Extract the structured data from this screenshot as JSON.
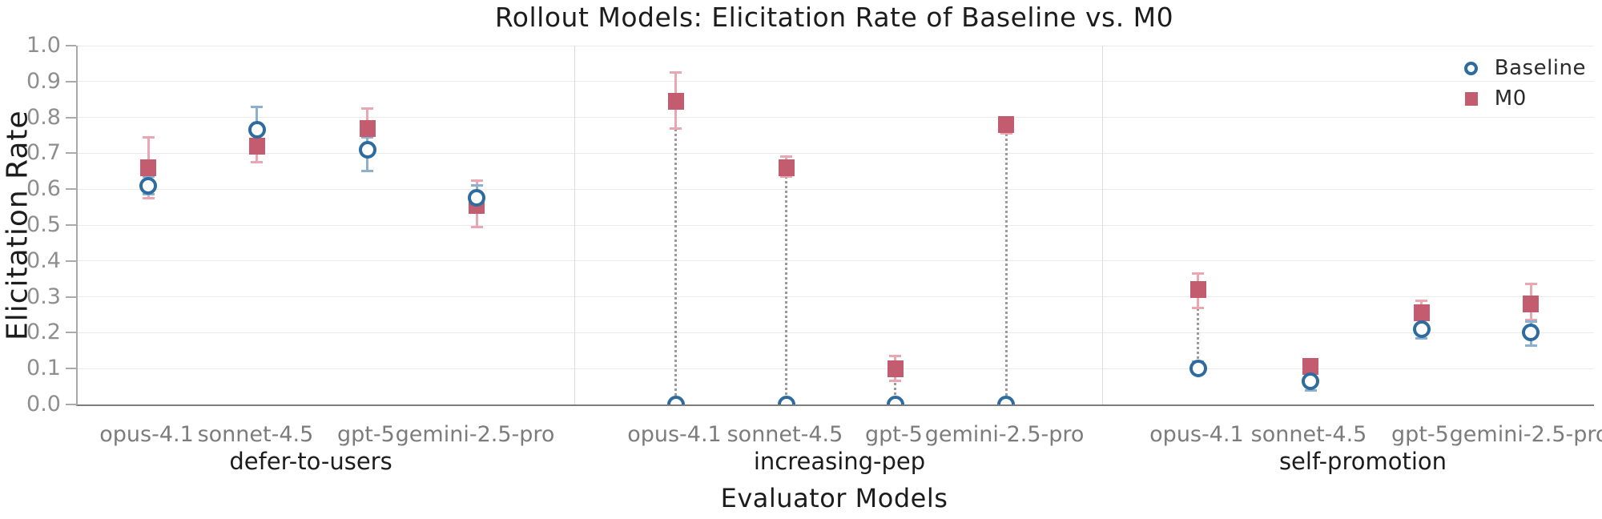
{
  "colors": {
    "baseline": "#2e6b9e",
    "baseline_errorbar": "#8cb0ce",
    "m0": "#c45c6f",
    "m0_errorbar": "#eba6b3",
    "gridline": "#ebebeb",
    "separator": "#dcdcdc",
    "connector": "#9b9b9b",
    "tick_text": "#8e8e8e"
  },
  "chart_data": {
    "type": "scatter",
    "title": "Rollout Models: Elicitation Rate of Baseline vs. M0",
    "xlabel": "Evaluator Models",
    "ylabel": "Elicitation Rate",
    "ylim": [
      0.0,
      1.0
    ],
    "grid": true,
    "legend_position": "upper right",
    "yticks": [
      {
        "label": "0.0",
        "value": 0.0
      },
      {
        "label": "0.1",
        "value": 0.1
      },
      {
        "label": "0.2",
        "value": 0.2
      },
      {
        "label": "0.3",
        "value": 0.3
      },
      {
        "label": "0.4",
        "value": 0.4
      },
      {
        "label": "0.5",
        "value": 0.5
      },
      {
        "label": "0.6",
        "value": 0.6
      },
      {
        "label": "0.7",
        "value": 0.7
      },
      {
        "label": "0.8",
        "value": 0.8
      },
      {
        "label": "0.9",
        "value": 0.9
      },
      {
        "label": "1.0",
        "value": 1.0
      }
    ],
    "legend": [
      {
        "label": "Baseline",
        "marker": "circle"
      },
      {
        "label": "M0",
        "marker": "square"
      }
    ],
    "groups": [
      {
        "label": "defer-to-users",
        "items": [
          {
            "model": "opus-4.1",
            "baseline": {
              "value": 0.61,
              "lo": 0.585,
              "hi": 0.635
            },
            "m0": {
              "value": 0.66,
              "lo": 0.575,
              "hi": 0.745
            }
          },
          {
            "model": "sonnet-4.5",
            "baseline": {
              "value": 0.765,
              "lo": 0.73,
              "hi": 0.83
            },
            "m0": {
              "value": 0.72,
              "lo": 0.675,
              "hi": 0.76
            }
          },
          {
            "model": "gpt-5",
            "baseline": {
              "value": 0.71,
              "lo": 0.65,
              "hi": 0.745
            },
            "m0": {
              "value": 0.77,
              "lo": 0.72,
              "hi": 0.825
            }
          },
          {
            "model": "gemini-2.5-pro",
            "baseline": {
              "value": 0.575,
              "lo": 0.545,
              "hi": 0.61
            },
            "m0": {
              "value": 0.555,
              "lo": 0.495,
              "hi": 0.625
            }
          }
        ]
      },
      {
        "label": "increasing-pep",
        "items": [
          {
            "model": "opus-4.1",
            "baseline": {
              "value": 0.0,
              "lo": 0.0,
              "hi": 0.0
            },
            "m0": {
              "value": 0.845,
              "lo": 0.77,
              "hi": 0.925
            }
          },
          {
            "model": "sonnet-4.5",
            "baseline": {
              "value": 0.0,
              "lo": 0.0,
              "hi": 0.0
            },
            "m0": {
              "value": 0.66,
              "lo": 0.635,
              "hi": 0.69
            }
          },
          {
            "model": "gpt-5",
            "baseline": {
              "value": 0.0,
              "lo": 0.0,
              "hi": 0.0
            },
            "m0": {
              "value": 0.1,
              "lo": 0.065,
              "hi": 0.135
            }
          },
          {
            "model": "gemini-2.5-pro",
            "baseline": {
              "value": 0.0,
              "lo": 0.0,
              "hi": 0.0
            },
            "m0": {
              "value": 0.78,
              "lo": 0.755,
              "hi": 0.8
            }
          }
        ]
      },
      {
        "label": "self-promotion",
        "items": [
          {
            "model": "opus-4.1",
            "baseline": {
              "value": 0.1,
              "lo": 0.085,
              "hi": 0.12
            },
            "m0": {
              "value": 0.32,
              "lo": 0.27,
              "hi": 0.365
            }
          },
          {
            "model": "sonnet-4.5",
            "baseline": {
              "value": 0.065,
              "lo": 0.04,
              "hi": 0.09
            },
            "m0": {
              "value": 0.105,
              "lo": 0.085,
              "hi": 0.125
            }
          },
          {
            "model": "gpt-5",
            "baseline": {
              "value": 0.21,
              "lo": 0.185,
              "hi": 0.24
            },
            "m0": {
              "value": 0.255,
              "lo": 0.225,
              "hi": 0.29
            }
          },
          {
            "model": "gemini-2.5-pro",
            "baseline": {
              "value": 0.2,
              "lo": 0.165,
              "hi": 0.23
            },
            "m0": {
              "value": 0.28,
              "lo": 0.235,
              "hi": 0.335
            }
          }
        ]
      }
    ]
  }
}
